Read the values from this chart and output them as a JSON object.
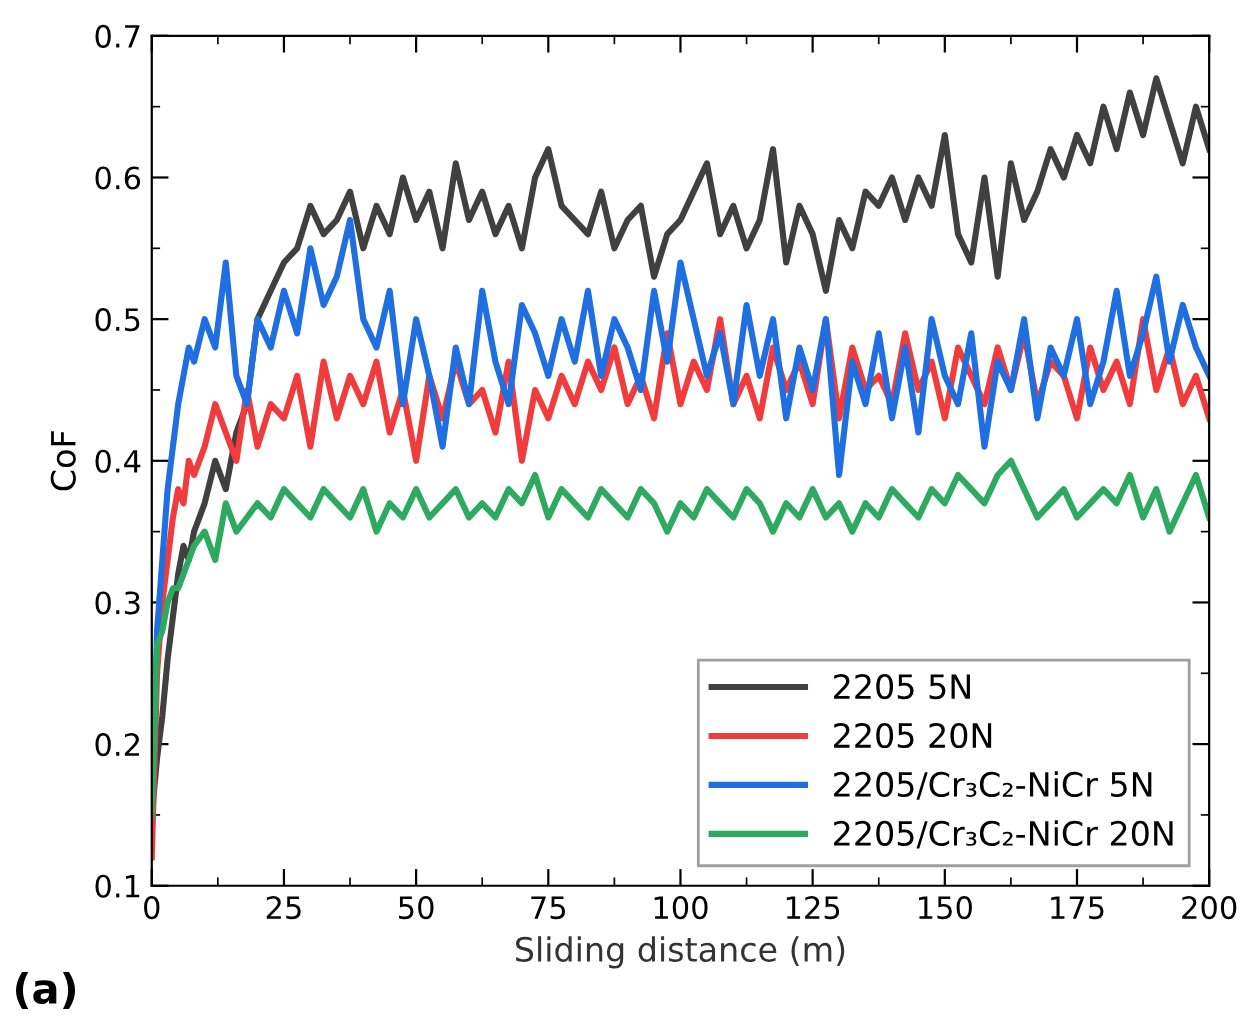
{
  "chart_data": {
    "type": "line",
    "xlabel": "Sliding distance (m)",
    "ylabel": "CoF",
    "annotations": [
      "(a)"
    ],
    "x": [
      0,
      1,
      2,
      3,
      4,
      5,
      6,
      7,
      8,
      10,
      12,
      14,
      16,
      18,
      20,
      22.5,
      25,
      27.5,
      30,
      32.5,
      35,
      37.5,
      40,
      42.5,
      45,
      47.5,
      50,
      52.5,
      55,
      57.5,
      60,
      62.5,
      65,
      67.5,
      70,
      72.5,
      75,
      77.5,
      80,
      82.5,
      85,
      87.5,
      90,
      92.5,
      95,
      97.5,
      100,
      102.5,
      105,
      107.5,
      110,
      112.5,
      115,
      117.5,
      120,
      122.5,
      125,
      127.5,
      130,
      132.5,
      135,
      137.5,
      140,
      142.5,
      145,
      147.5,
      150,
      152.5,
      155,
      157.5,
      160,
      162.5,
      165,
      167.5,
      170,
      172.5,
      175,
      177.5,
      180,
      182.5,
      185,
      187.5,
      190,
      192.5,
      195,
      197.5,
      200
    ],
    "series": [
      {
        "name": "2205 5N",
        "color": "#404040",
        "values": [
          0.15,
          0.19,
          0.22,
          0.26,
          0.29,
          0.32,
          0.34,
          0.33,
          0.35,
          0.37,
          0.4,
          0.38,
          0.42,
          0.44,
          0.5,
          0.52,
          0.54,
          0.55,
          0.58,
          0.56,
          0.57,
          0.59,
          0.55,
          0.58,
          0.56,
          0.6,
          0.57,
          0.59,
          0.55,
          0.61,
          0.57,
          0.59,
          0.56,
          0.58,
          0.55,
          0.6,
          0.62,
          0.58,
          0.57,
          0.56,
          0.59,
          0.55,
          0.57,
          0.58,
          0.53,
          0.56,
          0.57,
          0.59,
          0.61,
          0.56,
          0.58,
          0.55,
          0.57,
          0.62,
          0.54,
          0.58,
          0.56,
          0.52,
          0.57,
          0.55,
          0.59,
          0.58,
          0.6,
          0.57,
          0.6,
          0.58,
          0.63,
          0.56,
          0.54,
          0.6,
          0.53,
          0.61,
          0.57,
          0.59,
          0.62,
          0.6,
          0.63,
          0.61,
          0.65,
          0.62,
          0.66,
          0.63,
          0.67,
          0.64,
          0.61,
          0.65,
          0.62
        ]
      },
      {
        "name": "2205 20N",
        "color": "#f03c3c",
        "values": [
          0.12,
          0.25,
          0.3,
          0.33,
          0.36,
          0.38,
          0.37,
          0.4,
          0.39,
          0.41,
          0.44,
          0.42,
          0.4,
          0.45,
          0.41,
          0.44,
          0.43,
          0.46,
          0.41,
          0.47,
          0.43,
          0.46,
          0.44,
          0.47,
          0.42,
          0.45,
          0.4,
          0.46,
          0.43,
          0.47,
          0.44,
          0.45,
          0.42,
          0.47,
          0.4,
          0.45,
          0.43,
          0.46,
          0.44,
          0.47,
          0.45,
          0.48,
          0.44,
          0.46,
          0.43,
          0.49,
          0.44,
          0.47,
          0.45,
          0.5,
          0.44,
          0.46,
          0.43,
          0.48,
          0.45,
          0.47,
          0.44,
          0.5,
          0.43,
          0.48,
          0.45,
          0.46,
          0.44,
          0.49,
          0.45,
          0.47,
          0.43,
          0.48,
          0.46,
          0.44,
          0.48,
          0.45,
          0.49,
          0.44,
          0.47,
          0.46,
          0.43,
          0.48,
          0.45,
          0.47,
          0.44,
          0.5,
          0.45,
          0.48,
          0.44,
          0.46,
          0.43
        ]
      },
      {
        "name": "2205/Cr₃C₂-NiCr 5N",
        "color": "#1f6fe0",
        "values": [
          0.15,
          0.28,
          0.33,
          0.38,
          0.41,
          0.44,
          0.46,
          0.48,
          0.47,
          0.5,
          0.48,
          0.54,
          0.46,
          0.44,
          0.5,
          0.48,
          0.52,
          0.49,
          0.55,
          0.51,
          0.53,
          0.57,
          0.5,
          0.48,
          0.52,
          0.44,
          0.5,
          0.46,
          0.41,
          0.48,
          0.44,
          0.52,
          0.47,
          0.44,
          0.51,
          0.49,
          0.46,
          0.5,
          0.47,
          0.52,
          0.46,
          0.5,
          0.48,
          0.45,
          0.52,
          0.47,
          0.54,
          0.5,
          0.46,
          0.49,
          0.44,
          0.51,
          0.46,
          0.5,
          0.43,
          0.48,
          0.45,
          0.5,
          0.39,
          0.47,
          0.44,
          0.49,
          0.43,
          0.48,
          0.42,
          0.5,
          0.46,
          0.44,
          0.49,
          0.41,
          0.47,
          0.45,
          0.5,
          0.43,
          0.48,
          0.46,
          0.5,
          0.44,
          0.47,
          0.52,
          0.46,
          0.49,
          0.53,
          0.47,
          0.51,
          0.48,
          0.46
        ]
      },
      {
        "name": "2205/Cr₃C₂-NiCr 20N",
        "color": "#2eaa60",
        "values": [
          0.15,
          0.27,
          0.28,
          0.3,
          0.31,
          0.31,
          0.32,
          0.33,
          0.34,
          0.35,
          0.33,
          0.37,
          0.35,
          0.36,
          0.37,
          0.36,
          0.38,
          0.37,
          0.36,
          0.38,
          0.37,
          0.36,
          0.38,
          0.35,
          0.37,
          0.36,
          0.38,
          0.36,
          0.37,
          0.38,
          0.36,
          0.37,
          0.36,
          0.38,
          0.37,
          0.39,
          0.36,
          0.38,
          0.37,
          0.36,
          0.38,
          0.37,
          0.36,
          0.38,
          0.37,
          0.35,
          0.37,
          0.36,
          0.38,
          0.37,
          0.36,
          0.38,
          0.37,
          0.35,
          0.37,
          0.36,
          0.38,
          0.36,
          0.37,
          0.35,
          0.37,
          0.36,
          0.38,
          0.37,
          0.36,
          0.38,
          0.37,
          0.39,
          0.38,
          0.37,
          0.39,
          0.4,
          0.38,
          0.36,
          0.37,
          0.38,
          0.36,
          0.37,
          0.38,
          0.37,
          0.39,
          0.36,
          0.38,
          0.35,
          0.37,
          0.39,
          0.36
        ]
      }
    ],
    "xlim": [
      0,
      200
    ],
    "ylim": [
      0.1,
      0.7
    ],
    "xticks": [
      0,
      25,
      50,
      75,
      100,
      125,
      150,
      175,
      200
    ],
    "yticks": [
      0.1,
      0.2,
      0.3,
      0.4,
      0.5,
      0.6,
      0.7
    ],
    "grid": false,
    "legend": "bottom right",
    "line_style": "solid",
    "marker": "none"
  }
}
